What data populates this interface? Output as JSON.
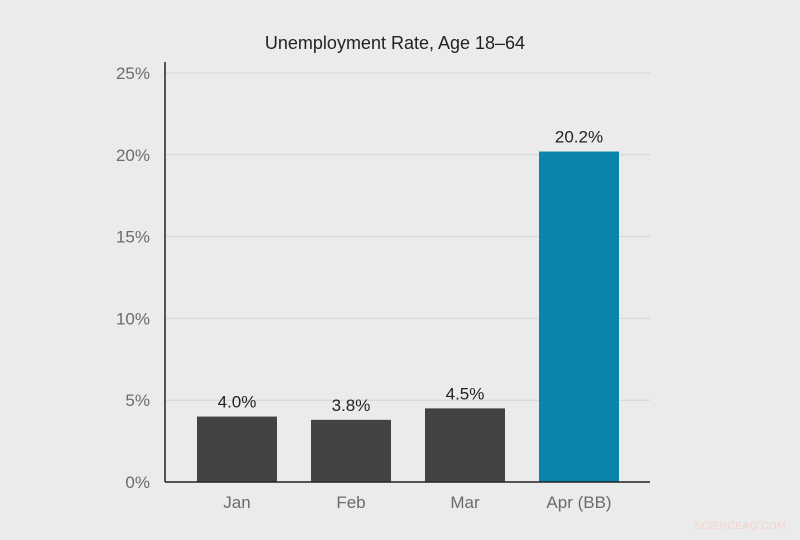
{
  "chart_data": {
    "type": "bar",
    "title": "Unemployment Rate, Age 18–64",
    "xlabel": "",
    "ylabel": "",
    "categories": [
      "Jan",
      "Feb",
      "Mar",
      "Apr (BB)"
    ],
    "values": [
      4.0,
      3.8,
      4.5,
      20.2
    ],
    "data_labels": [
      "4.0%",
      "3.8%",
      "4.5%",
      "20.2%"
    ],
    "bar_colors": [
      "#454243",
      "#454243",
      "#454243",
      "#0a84ab"
    ],
    "ylim": [
      0,
      25
    ],
    "yticks": [
      0,
      5,
      10,
      15,
      20,
      25
    ],
    "ytick_labels": [
      "0%",
      "5%",
      "10%",
      "15%",
      "20%",
      "25%"
    ],
    "grid": true,
    "legend": "none"
  },
  "watermark": "SCIENCEAQ.COM",
  "colors": {
    "background": "#ebebeb",
    "bar_default": "#454243",
    "bar_highlight": "#0a84ab",
    "grid": "#d4d4d4",
    "axis": "#222222",
    "tick_text": "#6b6b6b",
    "label_text": "#222222"
  }
}
